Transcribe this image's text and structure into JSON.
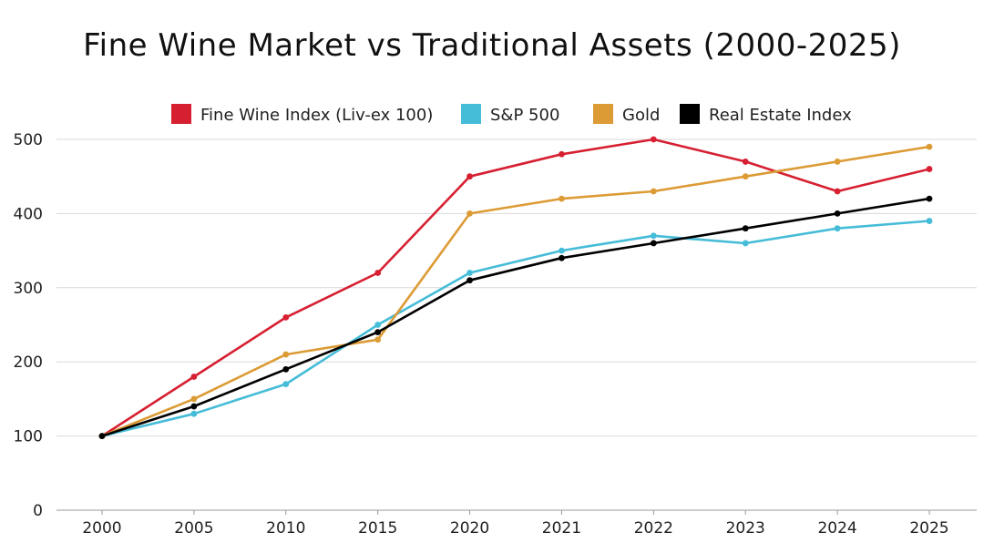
{
  "chart_data": {
    "type": "line",
    "title": "Fine Wine Market vs Traditional Assets (2000-2025)",
    "xlabel": "",
    "ylabel": "",
    "categories": [
      "2000",
      "2005",
      "2010",
      "2015",
      "2020",
      "2021",
      "2022",
      "2023",
      "2024",
      "2025"
    ],
    "ylim": [
      0,
      500
    ],
    "yticks": [
      0,
      100,
      200,
      300,
      400,
      500
    ],
    "grid": true,
    "legend_position": "top",
    "series": [
      {
        "name": "Fine Wine Index (Liv-ex 100)",
        "color": "#d62032",
        "values": [
          100,
          180,
          260,
          320,
          450,
          480,
          500,
          470,
          430,
          460
        ]
      },
      {
        "name": "S&P 500",
        "color": "#45bcd8",
        "values": [
          100,
          130,
          170,
          250,
          320,
          350,
          370,
          360,
          380,
          390
        ]
      },
      {
        "name": "Gold",
        "color": "#dc9b35",
        "values": [
          100,
          150,
          210,
          230,
          400,
          420,
          430,
          450,
          470,
          490
        ]
      },
      {
        "name": "Real Estate Index",
        "color": "#000000",
        "values": [
          100,
          140,
          190,
          240,
          310,
          340,
          360,
          380,
          400,
          420
        ]
      }
    ]
  }
}
